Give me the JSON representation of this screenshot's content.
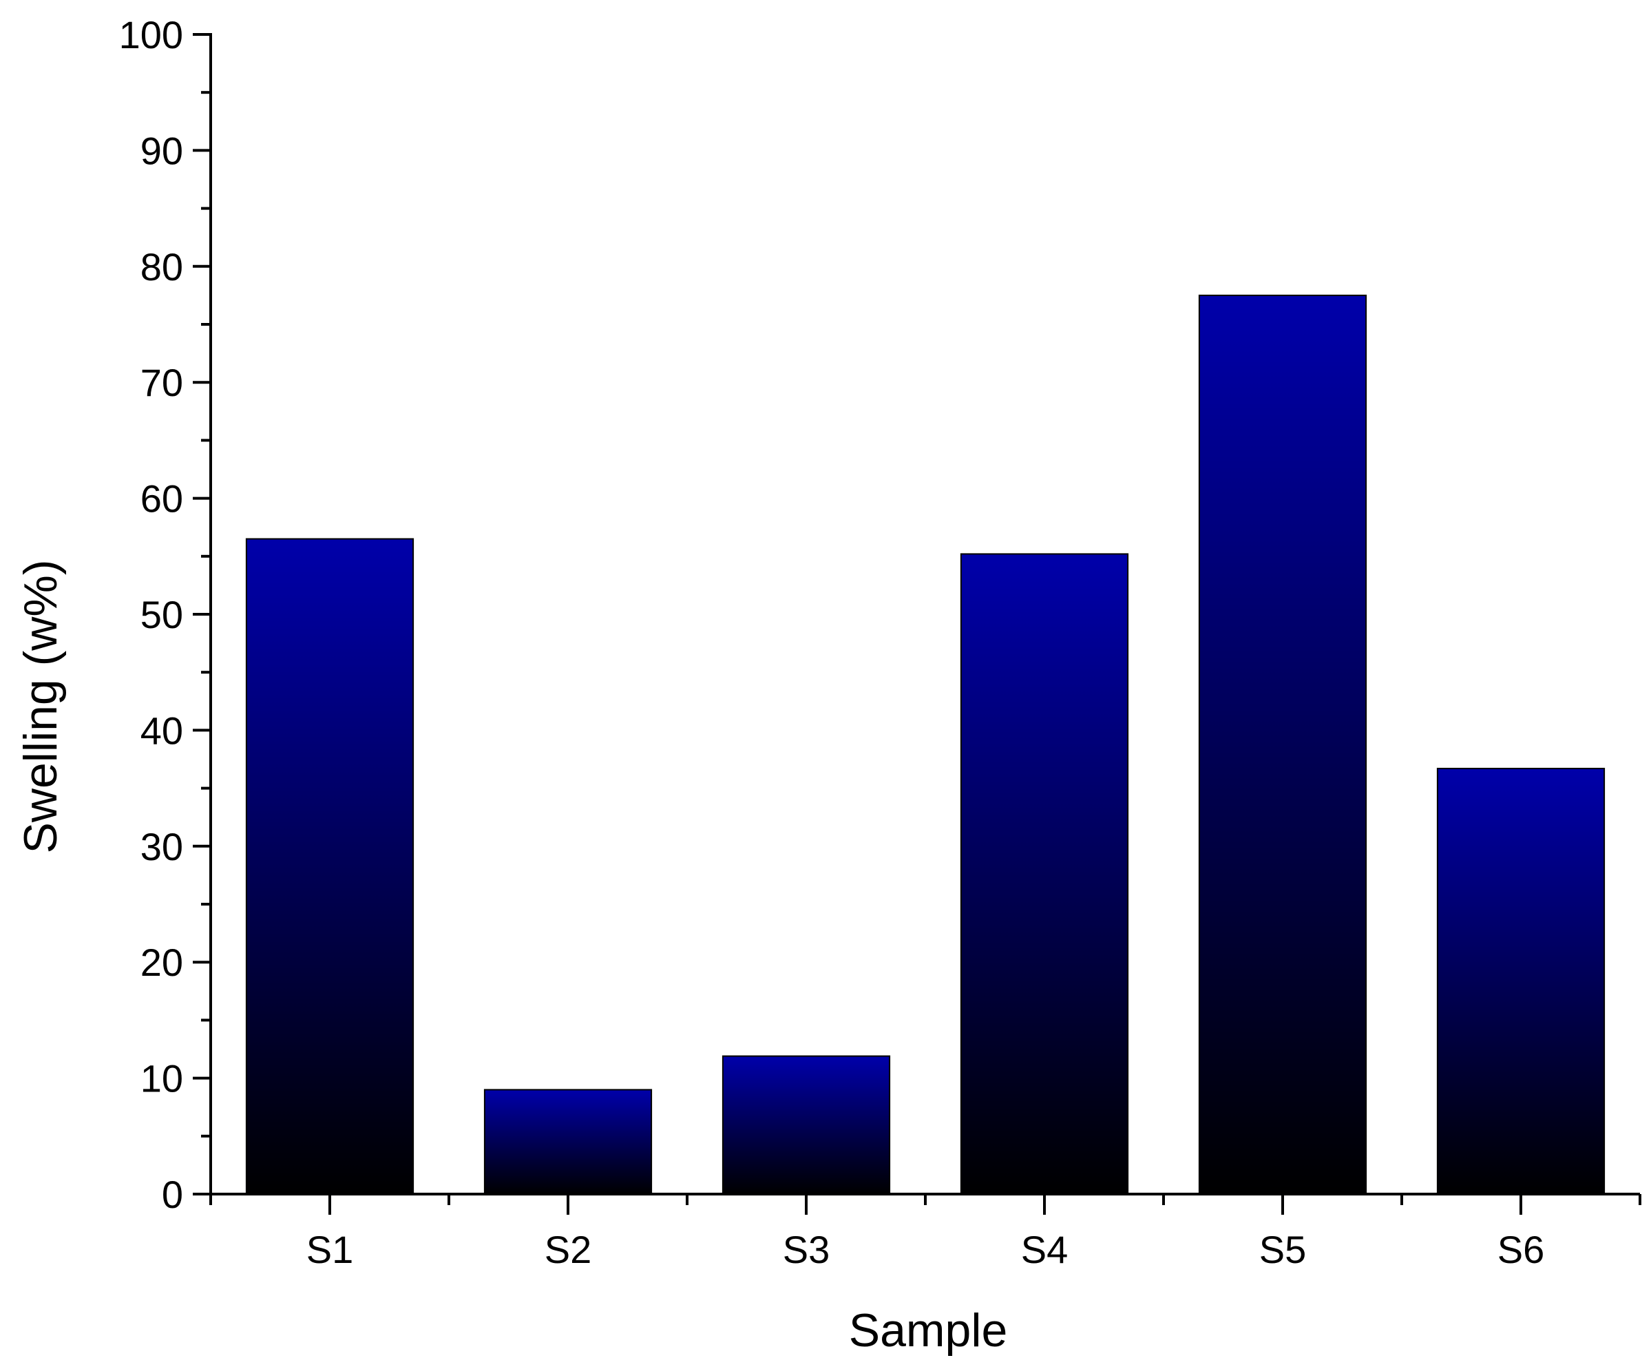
{
  "chart_data": {
    "type": "bar",
    "title": "",
    "xlabel": "Sample",
    "ylabel": "Swelling (w%)",
    "categories": [
      "S1",
      "S2",
      "S3",
      "S4",
      "S5",
      "S6"
    ],
    "values": [
      56.5,
      9.0,
      11.9,
      55.2,
      77.5,
      36.7
    ],
    "ylim": [
      0,
      100
    ],
    "yticks": [
      "0",
      "10",
      "20",
      "30",
      "40",
      "50",
      "60",
      "70",
      "80",
      "90",
      "100"
    ],
    "grid": false,
    "legend": "none",
    "colors": {
      "bar_top": "#0000aa",
      "bar_bottom": "#000000",
      "axis": "#000000"
    }
  }
}
